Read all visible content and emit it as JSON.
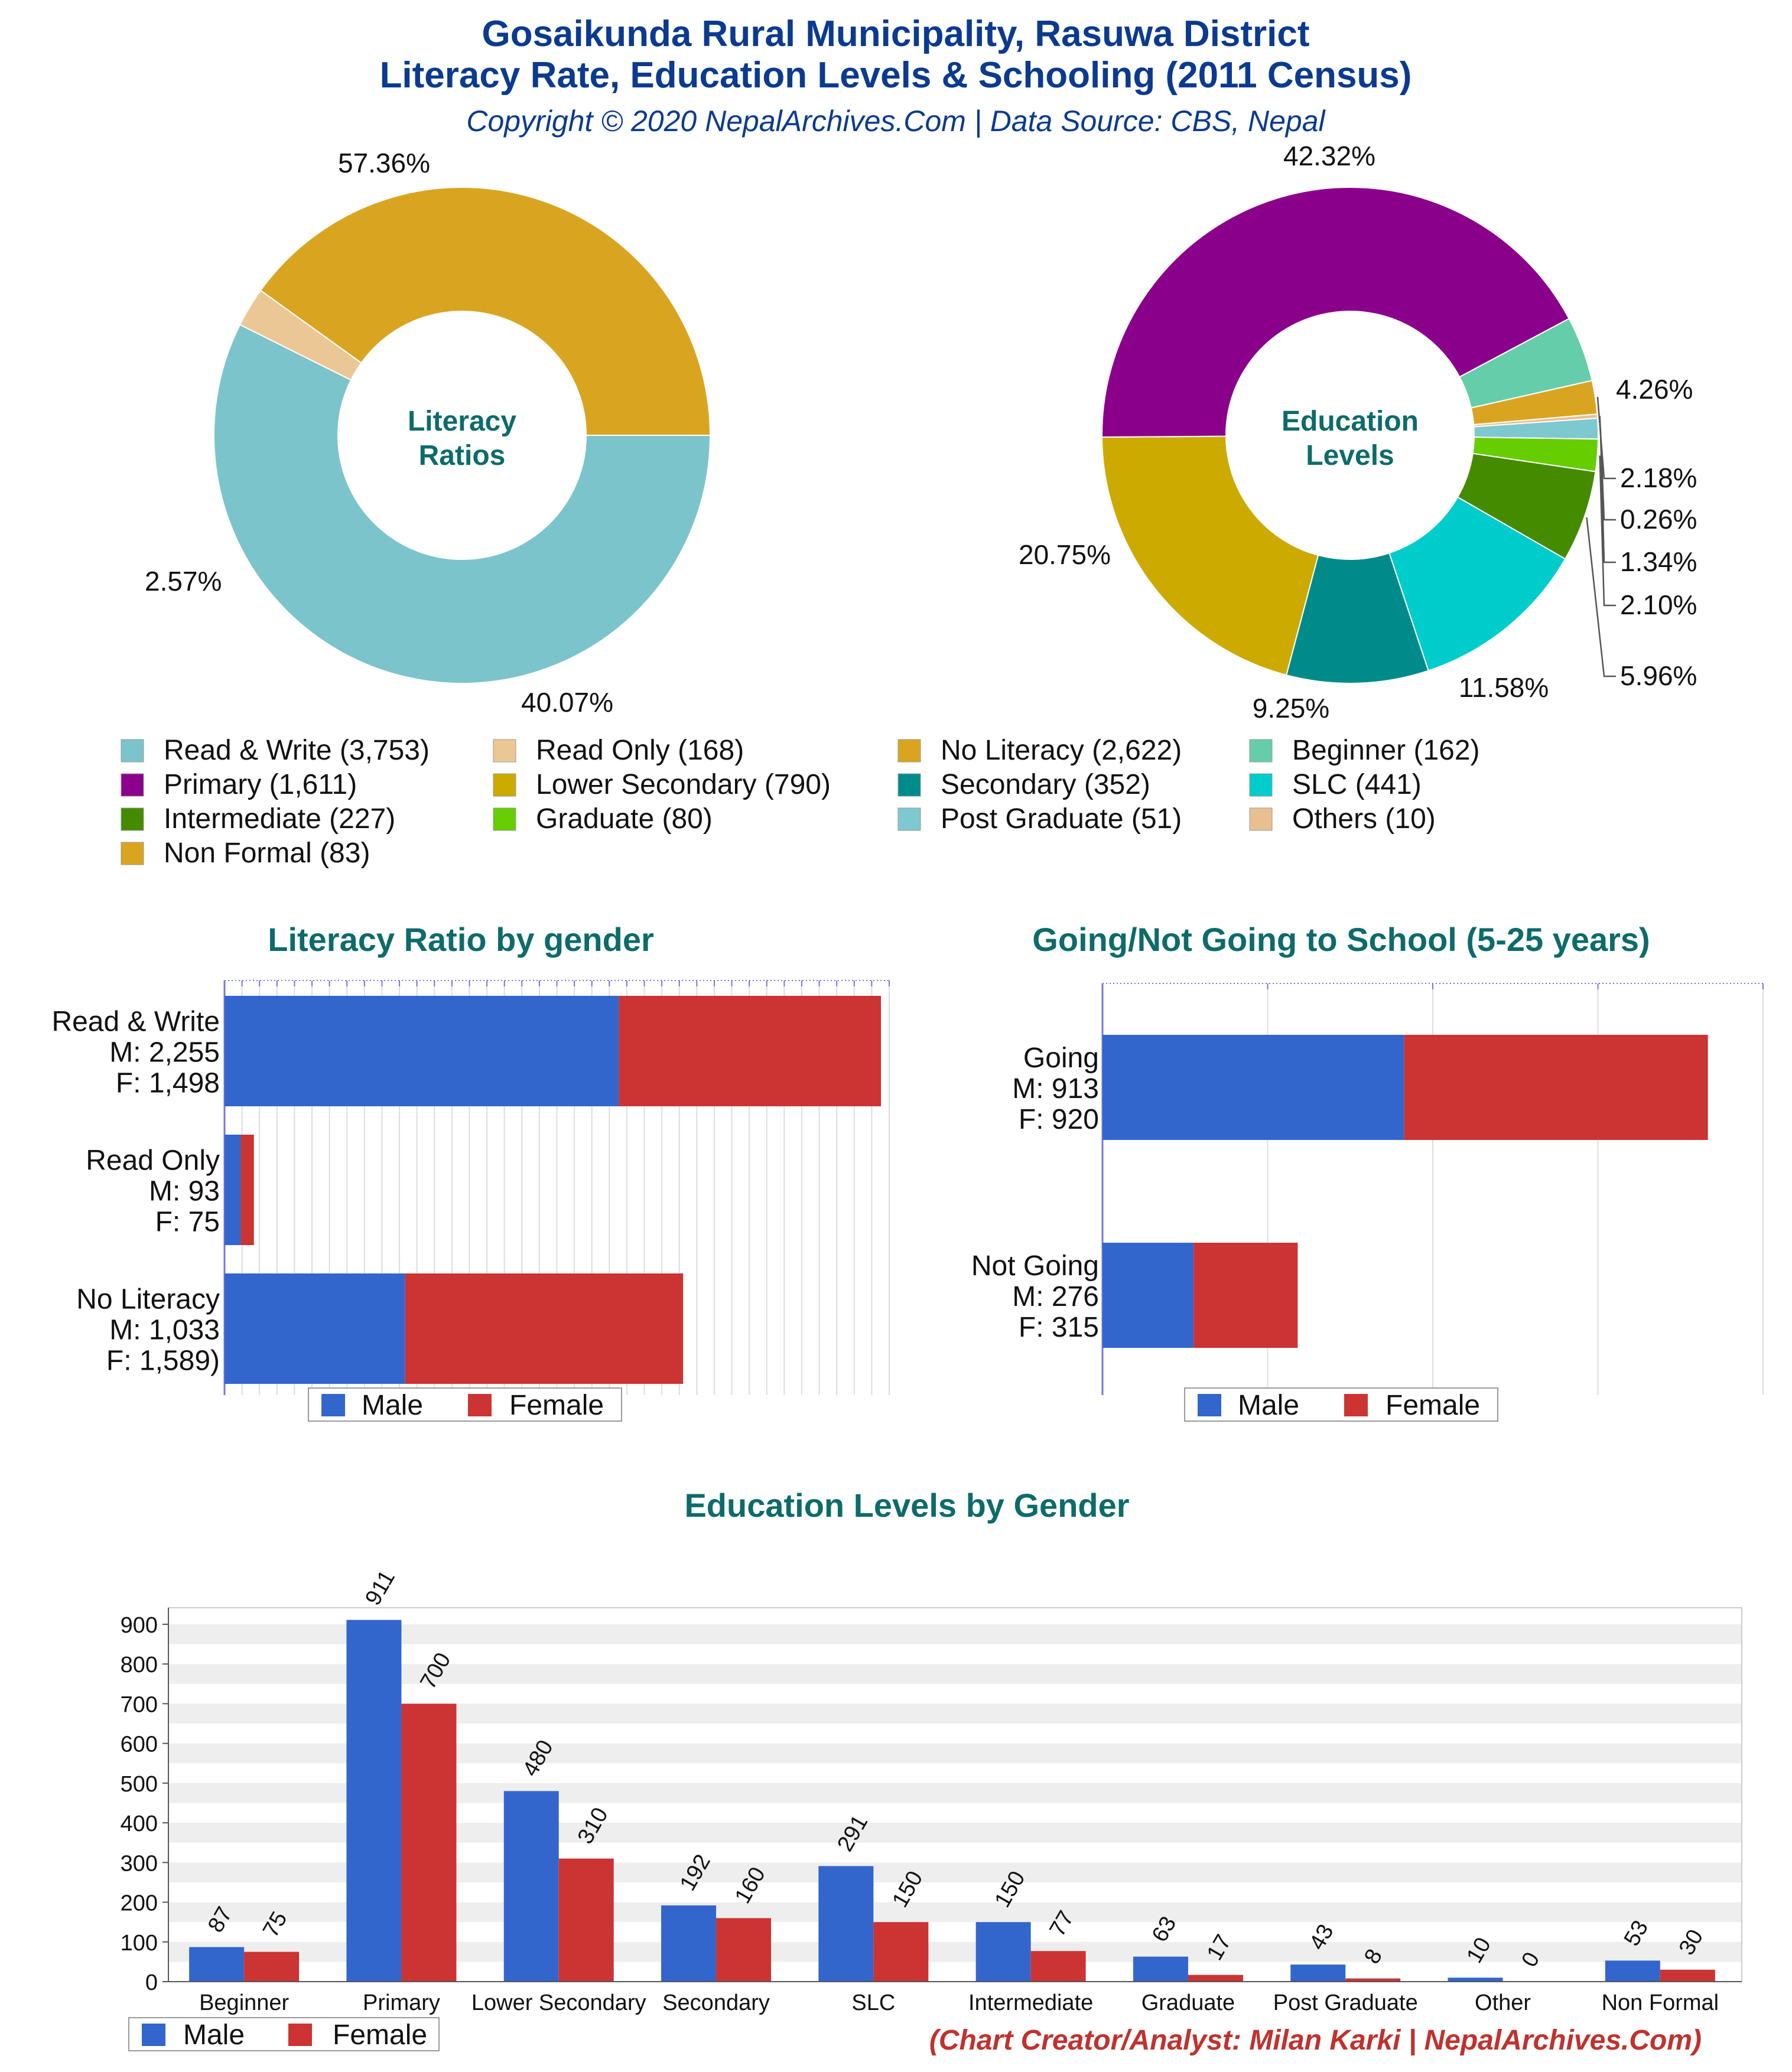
{
  "header": {
    "title_line1": "Gosaikunda Rural Municipality, Rasuwa District",
    "title_line2": "Literacy Rate, Education Levels & Schooling (2011 Census)",
    "copyright": "Copyright © 2020 NepalArchives.Com | Data Source: CBS, Nepal"
  },
  "colors": {
    "read_write": "#7cc4cc",
    "read_only": "#ecc796",
    "no_literacy": "#d9a521",
    "beginner": "#66cdaa",
    "primary": "#8b008b",
    "lower_secondary": "#ccaa00",
    "secondary": "#008b8b",
    "slc": "#00cccc",
    "intermediate": "#458b00",
    "graduate": "#66cd00",
    "post_graduate": "#7ec8d0",
    "others": "#e8c090",
    "non_formal": "#d9a521",
    "male": "#3366cc",
    "female": "#cc3333"
  },
  "legend_items": [
    {
      "label": "Read & Write (3,753)",
      "color_key": "read_write"
    },
    {
      "label": "Read Only (168)",
      "color_key": "read_only"
    },
    {
      "label": "No Literacy (2,622)",
      "color_key": "no_literacy"
    },
    {
      "label": "Beginner (162)",
      "color_key": "beginner"
    },
    {
      "label": "Primary (1,611)",
      "color_key": "primary"
    },
    {
      "label": "Lower Secondary (790)",
      "color_key": "lower_secondary"
    },
    {
      "label": "Secondary (352)",
      "color_key": "secondary"
    },
    {
      "label": "SLC (441)",
      "color_key": "slc"
    },
    {
      "label": "Intermediate (227)",
      "color_key": "intermediate"
    },
    {
      "label": "Graduate (80)",
      "color_key": "graduate"
    },
    {
      "label": "Post Graduate (51)",
      "color_key": "post_graduate"
    },
    {
      "label": "Others (10)",
      "color_key": "others"
    },
    {
      "label": "Non Formal (83)",
      "color_key": "non_formal"
    }
  ],
  "gender_legend": {
    "male": "Male",
    "female": "Female"
  },
  "credit": "(Chart Creator/Analyst: Milan Karki | NepalArchives.Com)",
  "chart_data": [
    {
      "type": "pie",
      "center_label": [
        "Literacy",
        "Ratios"
      ],
      "slices": [
        {
          "name": "Read & Write",
          "value": 3753,
          "pct_label": "57.36%",
          "color_key": "read_write"
        },
        {
          "name": "Read Only",
          "value": 168,
          "pct_label": "2.57%",
          "color_key": "read_only"
        },
        {
          "name": "No Literacy",
          "value": 2622,
          "pct_label": "40.07%",
          "color_key": "no_literacy"
        }
      ]
    },
    {
      "type": "pie",
      "center_label": [
        "Education",
        "Levels"
      ],
      "slices": [
        {
          "name": "Beginner",
          "value": 162,
          "pct_label": "4.26%",
          "color_key": "beginner"
        },
        {
          "name": "Non Formal",
          "value": 83,
          "pct_label": "2.18%",
          "color_key": "non_formal"
        },
        {
          "name": "Others",
          "value": 10,
          "pct_label": "0.26%",
          "color_key": "others"
        },
        {
          "name": "Post Graduate",
          "value": 51,
          "pct_label": "1.34%",
          "color_key": "post_graduate"
        },
        {
          "name": "Graduate",
          "value": 80,
          "pct_label": "2.10%",
          "color_key": "graduate"
        },
        {
          "name": "Intermediate",
          "value": 227,
          "pct_label": "5.96%",
          "color_key": "intermediate"
        },
        {
          "name": "SLC",
          "value": 441,
          "pct_label": "11.58%",
          "color_key": "slc"
        },
        {
          "name": "Secondary",
          "value": 352,
          "pct_label": "9.25%",
          "color_key": "secondary"
        },
        {
          "name": "Lower Secondary",
          "value": 790,
          "pct_label": "20.75%",
          "color_key": "lower_secondary"
        },
        {
          "name": "Primary",
          "value": 1611,
          "pct_label": "42.32%",
          "color_key": "primary"
        }
      ]
    },
    {
      "type": "bar",
      "orientation": "horizontal",
      "stacked": true,
      "title": "Literacy Ratio by gender",
      "categories": [
        "Read & Write",
        "Read Only",
        "No Literacy"
      ],
      "category_labels": [
        [
          "Read & Write",
          "M: 2,255",
          "F: 1,498"
        ],
        [
          "Read Only",
          "M: 93",
          "F: 75"
        ],
        [
          "No Literacy",
          "M: 1,033",
          "F: 1,589)"
        ]
      ],
      "series": [
        {
          "name": "Male",
          "values": [
            2255,
            93,
            1033
          ]
        },
        {
          "name": "Female",
          "values": [
            1498,
            75,
            1589
          ]
        }
      ],
      "xlim": [
        0,
        3800
      ]
    },
    {
      "type": "bar",
      "orientation": "horizontal",
      "stacked": true,
      "title": "Going/Not Going to School (5-25 years)",
      "categories": [
        "Going",
        "Not Going"
      ],
      "category_labels": [
        [
          "Going",
          "M: 913",
          "F: 920"
        ],
        [
          "Not Going",
          "M: 276",
          "F: 315"
        ]
      ],
      "series": [
        {
          "name": "Male",
          "values": [
            913,
            276
          ]
        },
        {
          "name": "Female",
          "values": [
            920,
            315
          ]
        }
      ],
      "xlim": [
        0,
        2000
      ]
    },
    {
      "type": "bar",
      "title": "Education Levels by Gender",
      "categories": [
        "Beginner",
        "Primary",
        "Lower Secondary",
        "Secondary",
        "SLC",
        "Intermediate",
        "Graduate",
        "Post Graduate",
        "Other",
        "Non Formal"
      ],
      "series": [
        {
          "name": "Male",
          "values": [
            87,
            911,
            480,
            192,
            291,
            150,
            63,
            43,
            10,
            53
          ]
        },
        {
          "name": "Female",
          "values": [
            75,
            700,
            310,
            160,
            150,
            77,
            17,
            8,
            0,
            30
          ]
        }
      ],
      "ylim": [
        0,
        1000
      ],
      "yticks": [
        0,
        100,
        200,
        300,
        400,
        500,
        600,
        700,
        800,
        900
      ]
    }
  ]
}
